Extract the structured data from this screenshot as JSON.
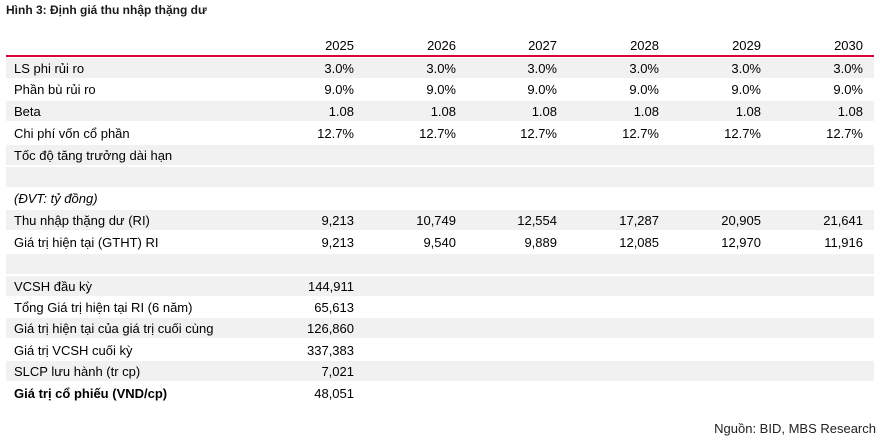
{
  "figure": {
    "title": "Hình 3: Định giá thu nhập thặng dư",
    "source": "Nguồn: BID, MBS Research"
  },
  "colors": {
    "accent_rule": "#d6003b",
    "row_shade": "#f1f1f1"
  },
  "header": {
    "years": [
      "2025",
      "2026",
      "2027",
      "2028",
      "2029",
      "2030"
    ]
  },
  "assumptions": [
    {
      "label": "LS phi rủi ro",
      "values": [
        "3.0%",
        "3.0%",
        "3.0%",
        "3.0%",
        "3.0%",
        "3.0%"
      ]
    },
    {
      "label": "Phần bù rủi ro",
      "values": [
        "9.0%",
        "9.0%",
        "9.0%",
        "9.0%",
        "9.0%",
        "9.0%"
      ]
    },
    {
      "label": "Beta",
      "values": [
        "1.08",
        "1.08",
        "1.08",
        "1.08",
        "1.08",
        "1.08"
      ]
    },
    {
      "label": "Chi phí vốn cổ phần",
      "values": [
        "12.7%",
        "12.7%",
        "12.7%",
        "12.7%",
        "12.7%",
        "12.7%"
      ]
    },
    {
      "label": "Tốc độ tăng trưởng dài hạn",
      "values": [
        "",
        "",
        "",
        "",
        "",
        ""
      ]
    }
  ],
  "unit_label": "(ĐVT: tỷ đồng)",
  "ri_rows": [
    {
      "label": "Thu nhập thặng dư (RI)",
      "values": [
        "9,213",
        "10,749",
        "12,554",
        "17,287",
        "20,905",
        "21,641"
      ]
    },
    {
      "label": "Giá trị hiện tại (GTHT) RI",
      "values": [
        "9,213",
        "9,540",
        "9,889",
        "12,085",
        "12,970",
        "11,916"
      ]
    }
  ],
  "summary": [
    {
      "label": "VCSH đầu kỳ",
      "value": "144,911"
    },
    {
      "label": "Tổng Giá trị hiện tại RI (6 năm)",
      "value": "65,613"
    },
    {
      "label": "Giá trị hiện tại của giá trị cuối cùng",
      "value": "126,860"
    },
    {
      "label": "Giá trị VCSH cuối kỳ",
      "value": "337,383"
    },
    {
      "label": "SLCP lưu hành (tr cp)",
      "value": "7,021"
    },
    {
      "label": "Giá trị cổ phiếu (VND/cp)",
      "value": "48,051"
    }
  ]
}
